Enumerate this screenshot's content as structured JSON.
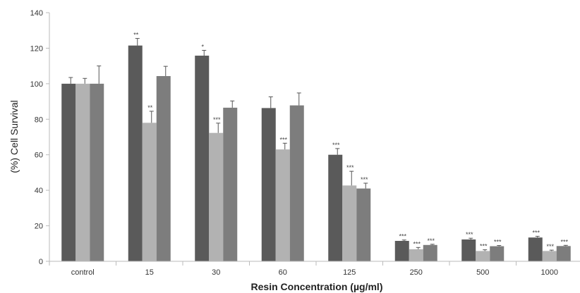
{
  "chart_data": {
    "type": "bar",
    "title": "",
    "xlabel": "Resin Concentration (µg/ml)",
    "ylabel": "(%) Cell Survival",
    "ylim": [
      0,
      140
    ],
    "yticks": [
      0,
      20,
      40,
      60,
      80,
      100,
      120,
      140
    ],
    "grid": false,
    "legend": "none",
    "categories": [
      "control",
      "15",
      "30",
      "60",
      "125",
      "250",
      "500",
      "1000"
    ],
    "series": [
      {
        "color": "#5a5a5a",
        "values": [
          100,
          121.5,
          115.8,
          86.3,
          60.0,
          11.5,
          12.3,
          13.4
        ],
        "errors": [
          3.5,
          4.0,
          3.0,
          6.3,
          3.5,
          0.5,
          0.7,
          0.7
        ],
        "significance": [
          "",
          "**",
          "*",
          "",
          "***",
          "***",
          "***",
          "***"
        ]
      },
      {
        "color": "#b2b2b2",
        "values": [
          100,
          78.0,
          72.3,
          63.0,
          42.7,
          6.8,
          5.8,
          5.8
        ],
        "errors": [
          3.0,
          6.5,
          5.5,
          3.5,
          8.0,
          1.0,
          0.7,
          0.5
        ],
        "significance": [
          "",
          "**",
          "***",
          "***",
          "***",
          "***",
          "***",
          "***"
        ]
      },
      {
        "color": "#7d7d7d",
        "values": [
          100,
          104.3,
          86.5,
          87.8,
          41.0,
          9.2,
          8.5,
          8.6
        ],
        "errors": [
          10.0,
          5.5,
          3.8,
          7.0,
          3.0,
          0.4,
          0.4,
          0.4
        ],
        "significance": [
          "",
          "",
          "",
          "",
          "***",
          "***",
          "***",
          "***"
        ]
      }
    ]
  }
}
